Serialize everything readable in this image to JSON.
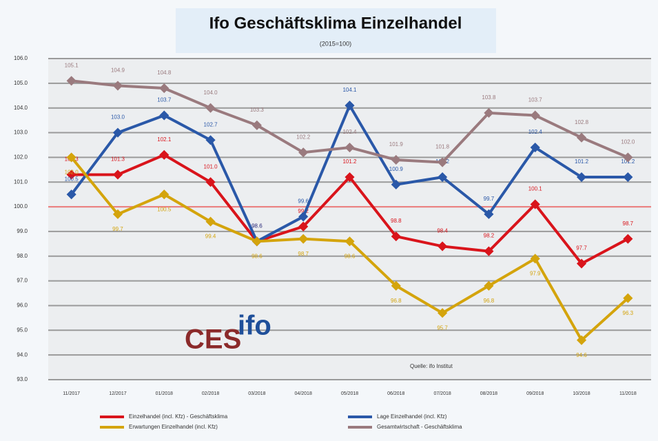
{
  "chart_data": {
    "type": "line",
    "title": "Ifo Geschäftsklima Einzelhandel",
    "subtitle": "(2015=100)",
    "source": "Quelle: ifo Institut",
    "logo": [
      "CES",
      "ifo"
    ],
    "categories": [
      "11/2017",
      "12/2017",
      "01/2018",
      "02/2018",
      "03/2018",
      "04/2018",
      "05/2018",
      "06/2018",
      "07/2018",
      "08/2018",
      "09/2018",
      "10/2018",
      "11/2018"
    ],
    "series": [
      {
        "name": "Einzelhandel (incl. Kfz) - Geschäftsklima",
        "color": "#d9141b",
        "values": [
          101.3,
          101.3,
          102.1,
          101.0,
          98.6,
          99.2,
          101.2,
          98.8,
          98.4,
          98.2,
          100.1,
          97.7,
          98.7
        ],
        "value_labels": [
          "101.3",
          "101.3",
          "102.1",
          "101.0",
          "98.6",
          "99.2",
          "101.2",
          "98.8",
          "98.4",
          "98.2",
          "100.1",
          "97.7",
          "98.7"
        ]
      },
      {
        "name": "Lage Einzelhandel (incl. Kfz)",
        "color": "#2a58a8",
        "values": [
          100.5,
          103.0,
          103.7,
          102.7,
          98.6,
          99.6,
          104.1,
          100.9,
          101.2,
          99.7,
          102.4,
          101.2,
          101.2
        ],
        "value_labels": [
          "100.5",
          "103.0",
          "103.7",
          "102.7",
          "98.6",
          "99.6",
          "104.1",
          "100.9",
          "101.2",
          "99.7",
          "102.4",
          "101.2",
          "101.2"
        ]
      },
      {
        "name": "Erwartungen Einzelhandel (incl. Kfz)",
        "color": "#d4a40c",
        "values": [
          102.0,
          99.7,
          100.5,
          99.4,
          98.6,
          98.7,
          98.6,
          96.8,
          95.7,
          96.8,
          97.9,
          94.6,
          96.3
        ],
        "value_labels": [
          "102.0",
          "99.7",
          "100.5",
          "99.4",
          "98.6",
          "98.7",
          "98.6",
          "96.8",
          "95.7",
          "96.8",
          "97.9",
          "94.6",
          "96.3"
        ]
      },
      {
        "name": "Gesamtwirtschaft - Geschäftsklima",
        "color": "#9a7a7e",
        "values": [
          105.1,
          104.9,
          104.8,
          104.0,
          103.3,
          102.2,
          102.4,
          101.9,
          101.8,
          103.8,
          103.7,
          102.8,
          102.0
        ],
        "value_labels": [
          "105.1",
          "104.9",
          "104.8",
          "104.0",
          "103.3",
          "102.2",
          "102.4",
          "101.9",
          "101.8",
          "103.8",
          "103.7",
          "102.8",
          "102.0"
        ]
      }
    ],
    "hline": 100,
    "ylim": [
      93,
      106
    ],
    "yticks": [
      {
        "value": 93,
        "label": "93.0"
      },
      {
        "value": 94,
        "label": "94.0"
      },
      {
        "value": 95,
        "label": "95.0"
      },
      {
        "value": 96,
        "label": "96.0"
      },
      {
        "value": 97,
        "label": "97.0"
      },
      {
        "value": 98,
        "label": "98.0"
      },
      {
        "value": 99,
        "label": "99.0"
      },
      {
        "value": 100,
        "label": "100.0"
      },
      {
        "value": 101,
        "label": "101.0"
      },
      {
        "value": 102,
        "label": "102.0"
      },
      {
        "value": 103,
        "label": "103.0"
      },
      {
        "value": 104,
        "label": "104.0"
      },
      {
        "value": 105,
        "label": "105.0"
      },
      {
        "value": 106,
        "label": "106.0"
      }
    ],
    "grid": true
  }
}
